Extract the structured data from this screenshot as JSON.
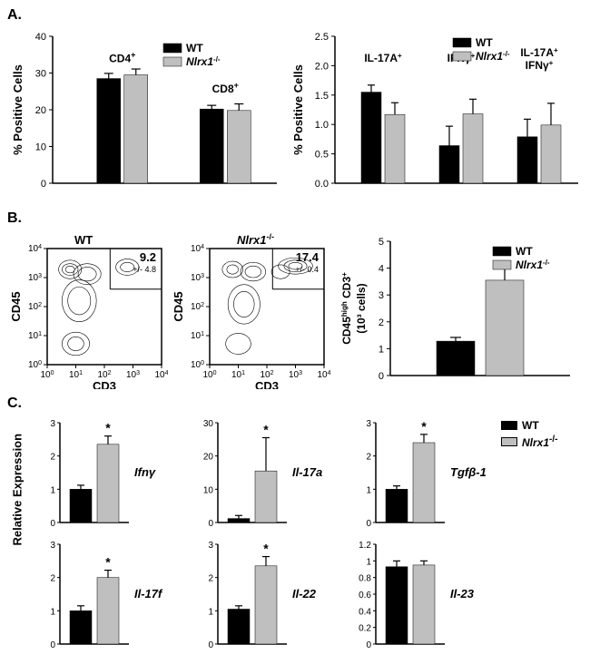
{
  "panelA": {
    "label": "A.",
    "left": {
      "type": "bar",
      "y_title": "% Positive Cells",
      "ylim": [
        0,
        40
      ],
      "ticks": [
        0,
        10,
        20,
        30,
        40
      ],
      "groups": [
        "CD4⁺",
        "CD8⁺"
      ],
      "group_labels_raw": [
        "CD4",
        "CD8"
      ],
      "series": [
        {
          "name": "WT",
          "color": "#000000"
        },
        {
          "name": "Nlrx1⁻/⁻",
          "color": "#bfbfbf"
        }
      ],
      "values_wt": [
        28.5,
        20.2
      ],
      "err_wt": [
        1.4,
        1.0
      ],
      "values_ko": [
        29.5,
        19.8
      ],
      "err_ko": [
        1.6,
        1.8
      ]
    },
    "right": {
      "type": "bar",
      "y_title": "% Positive Cells",
      "ylim": [
        0,
        2.5
      ],
      "ticks": [
        0,
        0.5,
        1.0,
        1.5,
        2.0,
        2.5
      ],
      "groups": [
        "IL-17A⁺",
        "IFNγ⁺",
        "IL-17A⁺ IFNγ⁺"
      ],
      "series": [
        {
          "name": "WT",
          "color": "#000000"
        },
        {
          "name": "Nlrx1⁻/⁻",
          "color": "#bfbfbf"
        }
      ],
      "values_wt": [
        1.55,
        0.64,
        0.79
      ],
      "err_wt": [
        0.12,
        0.33,
        0.3
      ],
      "values_ko": [
        1.17,
        1.18,
        0.99
      ],
      "err_ko": [
        0.2,
        0.25,
        0.37
      ]
    }
  },
  "panelB": {
    "label": "B.",
    "facs": [
      {
        "title": "WT",
        "pct": "9.2",
        "pm": "+/- 4.8",
        "x_title": "CD3",
        "y_title": "CD45"
      },
      {
        "title": "Nlrx1⁻/⁻",
        "pct": "17.4",
        "pm": "+/- 0.4",
        "x_title": "CD3",
        "y_title": "CD45"
      }
    ],
    "bar": {
      "type": "bar",
      "y_title_line1": "CD45ʰⁱᵍʰ CD3⁺",
      "y_title_line2": "(10³ cells)",
      "ylim": [
        0,
        5
      ],
      "ticks": [
        0,
        1,
        2,
        3,
        4,
        5
      ],
      "series": [
        {
          "name": "WT",
          "color": "#000000"
        },
        {
          "name": "Nlrx1⁻/⁻",
          "color": "#bfbfbf"
        }
      ],
      "values": [
        1.28,
        3.55
      ],
      "err": [
        0.14,
        0.7
      ],
      "sig": [
        false,
        true
      ]
    }
  },
  "panelC": {
    "label": "C.",
    "y_title": "Relative Expression",
    "series": [
      {
        "name": "WT",
        "color": "#000000"
      },
      {
        "name": "Nlrx1⁻/⁻",
        "color": "#bfbfbf"
      }
    ],
    "charts": [
      {
        "gene": "Ifnγ",
        "ylim": [
          0,
          3
        ],
        "ticks": [
          0,
          1,
          2,
          3
        ],
        "wt": 1.0,
        "wt_err": 0.12,
        "ko": 2.35,
        "ko_err": 0.25,
        "sig": true
      },
      {
        "gene": "Il-17a",
        "ylim": [
          0,
          30
        ],
        "ticks": [
          0,
          10,
          20,
          30
        ],
        "wt": 1.2,
        "wt_err": 0.9,
        "ko": 15.5,
        "ko_err": 10.0,
        "sig": true
      },
      {
        "gene": "Tgfβ-1",
        "ylim": [
          0,
          3
        ],
        "ticks": [
          0,
          1,
          2,
          3
        ],
        "wt": 1.0,
        "wt_err": 0.1,
        "ko": 2.4,
        "ko_err": 0.25,
        "sig": true
      },
      {
        "gene": "Il-17f",
        "ylim": [
          0,
          3
        ],
        "ticks": [
          0,
          1,
          2,
          3
        ],
        "wt": 1.0,
        "wt_err": 0.15,
        "ko": 2.0,
        "ko_err": 0.22,
        "sig": true
      },
      {
        "gene": "Il-22",
        "ylim": [
          0,
          3
        ],
        "ticks": [
          0,
          1,
          2,
          3
        ],
        "wt": 1.05,
        "wt_err": 0.1,
        "ko": 2.35,
        "ko_err": 0.28,
        "sig": true
      },
      {
        "gene": "Il-23",
        "ylim": [
          0,
          1.2
        ],
        "ticks": [
          0,
          0.2,
          0.4,
          0.6,
          0.8,
          1.0,
          1.2
        ],
        "wt": 0.93,
        "wt_err": 0.07,
        "ko": 0.95,
        "ko_err": 0.05,
        "sig": false
      }
    ]
  },
  "legend": {
    "wt": "WT",
    "ko_prefix": "Nlrx1",
    "ko_suffix": "-/-"
  },
  "colors": {
    "wt": "#000000",
    "ko": "#bfbfbf",
    "bg": "#ffffff",
    "axis": "#000000"
  }
}
